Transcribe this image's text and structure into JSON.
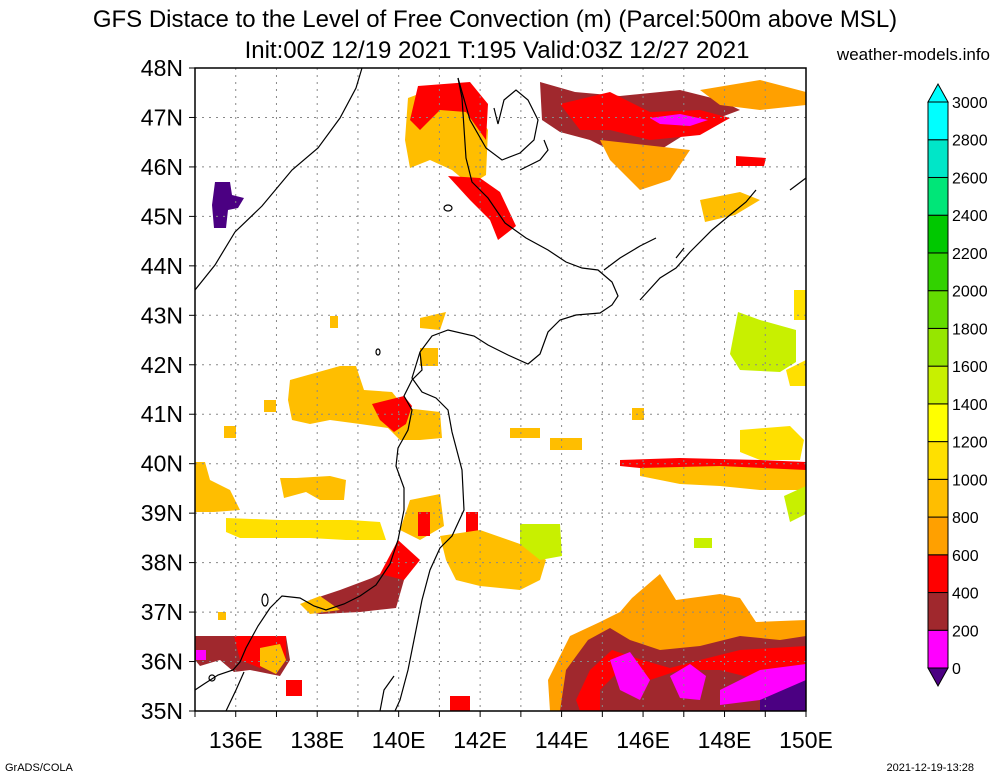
{
  "title_line1": "GFS Distace to the Level of Free Convection (m) (Parcel:500m above MSL)",
  "title_line2": "Init:00Z 12/19 2021 T:195 Valid:03Z 12/27 2021",
  "site": "weather-models.info",
  "footer_left": "GrADS/COLA",
  "footer_right": "2021-12-19-13:28",
  "map": {
    "lon_range": [
      135,
      150
    ],
    "lat_range": [
      35,
      48
    ],
    "lat_labels": [
      "35N",
      "36N",
      "37N",
      "38N",
      "39N",
      "40N",
      "41N",
      "42N",
      "43N",
      "44N",
      "45N",
      "46N",
      "47N",
      "48N"
    ],
    "lon_labels": [
      "136E",
      "138E",
      "140E",
      "142E",
      "144E",
      "146E",
      "148E",
      "150E"
    ],
    "lon_label_values": [
      136,
      138,
      140,
      142,
      144,
      146,
      148,
      150
    ]
  },
  "colorbar": {
    "labels": [
      "0",
      "200",
      "400",
      "600",
      "800",
      "1000",
      "1200",
      "1400",
      "1600",
      "1800",
      "2000",
      "2200",
      "2400",
      "2600",
      "2800",
      "3000"
    ],
    "colors": [
      "#4b0082",
      "#ff00ff",
      "#a0282d",
      "#ff0000",
      "#ffa000",
      "#ffbe00",
      "#ffe000",
      "#ffff00",
      "#c8f000",
      "#96e600",
      "#64dc00",
      "#32d200",
      "#00c800",
      "#00e678",
      "#00e6c8",
      "#00ffff"
    ]
  },
  "colors": {
    "c0": "#4b0082",
    "c200": "#ff00ff",
    "c400": "#a0282d",
    "c600": "#ff0000",
    "c800": "#ffa000",
    "c1000": "#ffbe00",
    "c1200": "#ffe000",
    "c1600": "#c8f000"
  }
}
